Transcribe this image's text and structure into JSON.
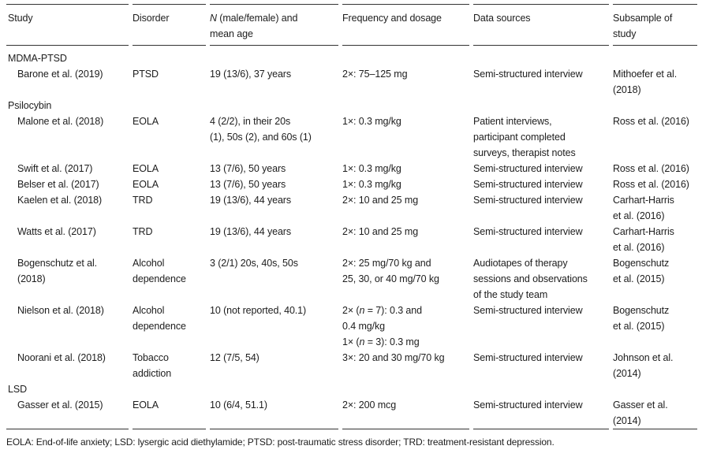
{
  "table": {
    "columns": [
      {
        "key": "study",
        "label": "Study"
      },
      {
        "key": "disorder",
        "label": "Disorder"
      },
      {
        "key": "n",
        "label": [
          {
            "i": "N"
          },
          " (male/female) and\nmean age"
        ]
      },
      {
        "key": "frequency",
        "label": "Frequency and dosage"
      },
      {
        "key": "sources",
        "label": "Data sources"
      },
      {
        "key": "subsample",
        "label": "Subsample of\nstudy"
      }
    ],
    "rows": [
      {
        "type": "group",
        "label": "MDMA-PTSD"
      },
      {
        "type": "study",
        "cells": [
          "Barone et al. (2019)",
          "PTSD",
          "19 (13/6), 37 years",
          "2×: 75–125 mg",
          "Semi-structured interview",
          "Mithoefer et al.\n(2018)"
        ]
      },
      {
        "type": "group",
        "label": "Psilocybin"
      },
      {
        "type": "study",
        "cells": [
          "Malone et al. (2018)",
          "EOLA",
          "4 (2/2), in their 20s\n(1), 50s (2), and 60s (1)",
          "1×: 0.3 mg/kg",
          "Patient interviews,\nparticipant completed\nsurveys, therapist notes",
          "Ross et al. (2016)"
        ]
      },
      {
        "type": "study",
        "cells": [
          "Swift et al. (2017)",
          "EOLA",
          "13 (7/6), 50 years",
          "1×: 0.3 mg/kg",
          "Semi-structured interview",
          "Ross et al. (2016)"
        ]
      },
      {
        "type": "study",
        "cells": [
          "Belser et al. (2017)",
          "EOLA",
          "13 (7/6), 50 years",
          "1×: 0.3 mg/kg",
          "Semi-structured interview",
          "Ross et al. (2016)"
        ]
      },
      {
        "type": "study",
        "cells": [
          "Kaelen et al. (2018)",
          "TRD",
          "19 (13/6), 44 years",
          "2×: 10 and 25 mg",
          "Semi-structured interview",
          "Carhart-Harris\net al. (2016)"
        ]
      },
      {
        "type": "study",
        "cells": [
          "Watts et al. (2017)",
          "TRD",
          "19 (13/6), 44 years",
          "2×: 10 and 25 mg",
          "Semi-structured interview",
          "Carhart-Harris\net al. (2016)"
        ]
      },
      {
        "type": "study",
        "cells": [
          "Bogenschutz et al.\n(2018)",
          "Alcohol\ndependence",
          "3 (2/1) 20s, 40s, 50s",
          "2×: 25 mg/70 kg and\n25, 30, or 40 mg/70 kg",
          "Audiotapes of therapy\nsessions and observations\nof the study team",
          "Bogenschutz\net al. (2015)"
        ]
      },
      {
        "type": "study",
        "cells": [
          "Nielson et al. (2018)",
          "Alcohol\ndependence",
          "10 (not reported, 40.1)",
          [
            "2× (",
            {
              "i": "n"
            },
            " = 7): 0.3 and\n0.4 mg/kg\n1× (",
            {
              "i": "n"
            },
            " = 3): 0.3 mg"
          ],
          "Semi-structured interview",
          "Bogenschutz\net al. (2015)"
        ]
      },
      {
        "type": "study",
        "cells": [
          "Noorani et al. (2018)",
          "Tobacco\naddiction",
          "12 (7/5, 54)",
          "3×: 20 and 30 mg/70 kg",
          "Semi-structured interview",
          "Johnson et al.\n(2014)"
        ]
      },
      {
        "type": "group",
        "label": "LSD"
      },
      {
        "type": "study",
        "cells": [
          "Gasser et al. (2015)",
          "EOLA",
          "10 (6/4, 51.1)",
          "2×: 200 mcg",
          "Semi-structured interview",
          "Gasser et al.\n(2014)"
        ]
      }
    ]
  },
  "footnote": "EOLA: End-of-life anxiety; LSD: lysergic acid diethylamide; PTSD: post-traumatic stress disorder; TRD: treatment-resistant depression."
}
